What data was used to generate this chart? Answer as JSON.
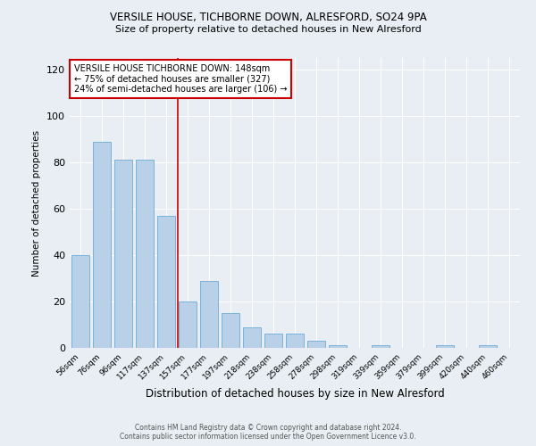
{
  "title1": "VERSILE HOUSE, TICHBORNE DOWN, ALRESFORD, SO24 9PA",
  "title2": "Size of property relative to detached houses in New Alresford",
  "xlabel": "Distribution of detached houses by size in New Alresford",
  "ylabel": "Number of detached properties",
  "categories": [
    "56sqm",
    "76sqm",
    "96sqm",
    "117sqm",
    "137sqm",
    "157sqm",
    "177sqm",
    "197sqm",
    "218sqm",
    "238sqm",
    "258sqm",
    "278sqm",
    "298sqm",
    "319sqm",
    "339sqm",
    "359sqm",
    "379sqm",
    "399sqm",
    "420sqm",
    "440sqm",
    "460sqm"
  ],
  "values": [
    40,
    89,
    81,
    81,
    57,
    20,
    29,
    15,
    9,
    6,
    6,
    3,
    1,
    0,
    1,
    0,
    0,
    1,
    0,
    1,
    0
  ],
  "bar_color": "#b8d0e8",
  "bar_edge_color": "#6aaad4",
  "vline_x": 4.55,
  "vline_color": "#cc0000",
  "ylim": [
    0,
    125
  ],
  "yticks": [
    0,
    20,
    40,
    60,
    80,
    100,
    120
  ],
  "annotation_box_text": "VERSILE HOUSE TICHBORNE DOWN: 148sqm\n← 75% of detached houses are smaller (327)\n24% of semi-detached houses are larger (106) →",
  "annotation_box_color": "#ffffff",
  "annotation_box_edge_color": "#cc0000",
  "footer1": "Contains HM Land Registry data © Crown copyright and database right 2024.",
  "footer2": "Contains public sector information licensed under the Open Government Licence v3.0.",
  "background_color": "#e8eef4",
  "grid_color": "#ffffff"
}
